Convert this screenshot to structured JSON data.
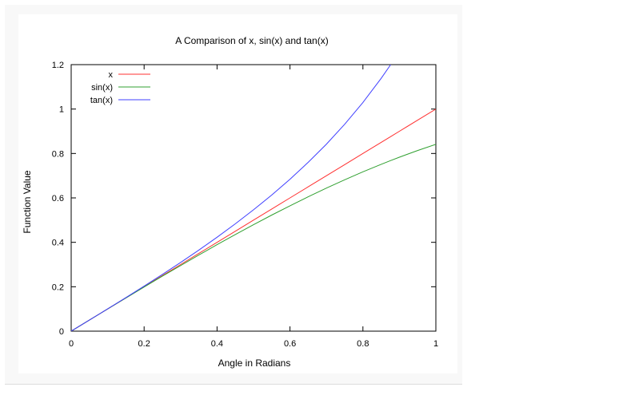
{
  "chart_data": {
    "type": "line",
    "title": "A Comparison of x, sin(x) and tan(x)",
    "xlabel": "Angle in Radians",
    "ylabel": "Function Value",
    "xlim": [
      0,
      1
    ],
    "ylim": [
      0,
      1.2
    ],
    "grid": false,
    "legend_position": "top-left",
    "x_ticks": [
      0,
      0.2,
      0.4,
      0.6,
      0.8,
      1
    ],
    "x_tick_labels": [
      "0",
      "0.2",
      "0.4",
      "0.6",
      "0.8",
      "1"
    ],
    "y_ticks": [
      0,
      0.2,
      0.4,
      0.6,
      0.8,
      1,
      1.2
    ],
    "y_tick_labels": [
      "0",
      "0.2",
      "0.4",
      "0.6",
      "0.8",
      "1",
      "1.2"
    ],
    "x": [
      0,
      0.05,
      0.1,
      0.15,
      0.2,
      0.25,
      0.3,
      0.35,
      0.4,
      0.45,
      0.5,
      0.55,
      0.6,
      0.65,
      0.7,
      0.75,
      0.8,
      0.85,
      0.876,
      0.9,
      0.95,
      1.0
    ],
    "series": [
      {
        "name": "x",
        "color": "#ff3030",
        "values": [
          0,
          0.05,
          0.1,
          0.15,
          0.2,
          0.25,
          0.3,
          0.35,
          0.4,
          0.45,
          0.5,
          0.55,
          0.6,
          0.65,
          0.7,
          0.75,
          0.8,
          0.85,
          0.876,
          0.9,
          0.95,
          1.0
        ]
      },
      {
        "name": "sin(x)",
        "color": "#30a030",
        "values": [
          0,
          0.05,
          0.0998,
          0.1494,
          0.1987,
          0.2474,
          0.2955,
          0.3429,
          0.3894,
          0.435,
          0.4794,
          0.5227,
          0.5646,
          0.6052,
          0.6442,
          0.6816,
          0.7174,
          0.7513,
          0.7681,
          0.7833,
          0.8134,
          0.8415
        ]
      },
      {
        "name": "tan(x)",
        "color": "#4040ff",
        "values": [
          0,
          0.05,
          0.1003,
          0.1511,
          0.2027,
          0.2553,
          0.3093,
          0.365,
          0.4228,
          0.4831,
          0.5463,
          0.6131,
          0.6841,
          0.7602,
          0.8423,
          0.9316,
          1.0296,
          1.1383,
          1.2,
          null,
          null,
          null
        ]
      }
    ]
  }
}
